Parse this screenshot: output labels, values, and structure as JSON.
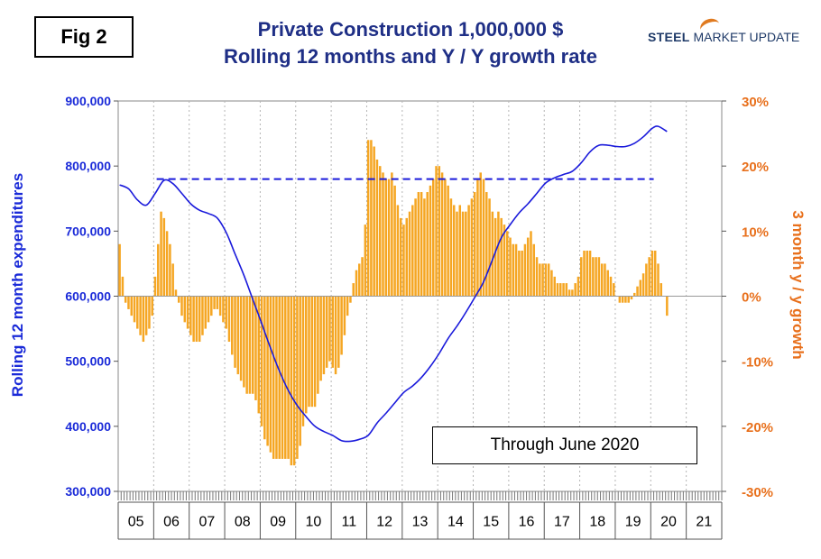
{
  "fig_label": "Fig 2",
  "title_line1": "Private Construction 1,000,000 $",
  "title_line2": "Rolling 12 months and Y / Y growth rate",
  "logo": {
    "steel": "STEEL",
    "rest": " MARKET UPDATE"
  },
  "note": "Through June 2020",
  "colors": {
    "line": "#1a1adb",
    "bars": "#f5a623",
    "left_axis": "#1a2ad8",
    "right_axis": "#e8701c",
    "title": "#1f2f86"
  },
  "chart_data": {
    "type": "bar+line",
    "left_axis": {
      "label": "Rolling 12 month expenditures",
      "ylim": [
        300000,
        900000
      ],
      "ticks": [
        "300,000",
        "400,000",
        "500,000",
        "600,000",
        "700,000",
        "800,000",
        "900,000"
      ]
    },
    "right_axis": {
      "label": "3 month y / y growth",
      "ylim": [
        -30,
        30
      ],
      "ticks": [
        "-30%",
        "-20%",
        "-10%",
        "0%",
        "10%",
        "20%",
        "30%"
      ]
    },
    "x_years": [
      "05",
      "06",
      "07",
      "08",
      "09",
      "10",
      "11",
      "12",
      "13",
      "14",
      "15",
      "16",
      "17",
      "18",
      "19",
      "20",
      "21"
    ],
    "x_range": [
      "2005-01",
      "2021-12"
    ],
    "reference_line": {
      "value": 780000,
      "start": "2006-02",
      "end": "2020-02",
      "style": "dashed"
    },
    "rolling_12m_line": [
      [
        "2005-01",
        771000
      ],
      [
        "2005-04",
        765000
      ],
      [
        "2005-07",
        748000
      ],
      [
        "2005-10",
        740000
      ],
      [
        "2006-01",
        758000
      ],
      [
        "2006-04",
        778000
      ],
      [
        "2006-07",
        773000
      ],
      [
        "2006-10",
        758000
      ],
      [
        "2007-01",
        742000
      ],
      [
        "2007-04",
        732000
      ],
      [
        "2007-07",
        727000
      ],
      [
        "2007-10",
        720000
      ],
      [
        "2008-01",
        698000
      ],
      [
        "2008-04",
        665000
      ],
      [
        "2008-07",
        632000
      ],
      [
        "2008-10",
        595000
      ],
      [
        "2009-01",
        558000
      ],
      [
        "2009-04",
        520000
      ],
      [
        "2009-07",
        485000
      ],
      [
        "2009-10",
        455000
      ],
      [
        "2010-01",
        432000
      ],
      [
        "2010-04",
        415000
      ],
      [
        "2010-07",
        400000
      ],
      [
        "2010-10",
        392000
      ],
      [
        "2011-01",
        386000
      ],
      [
        "2011-04",
        378000
      ],
      [
        "2011-07",
        377000
      ],
      [
        "2011-10",
        380000
      ],
      [
        "2012-01",
        386000
      ],
      [
        "2012-04",
        405000
      ],
      [
        "2012-07",
        420000
      ],
      [
        "2012-10",
        436000
      ],
      [
        "2013-01",
        452000
      ],
      [
        "2013-04",
        462000
      ],
      [
        "2013-07",
        475000
      ],
      [
        "2013-10",
        492000
      ],
      [
        "2014-01",
        512000
      ],
      [
        "2014-04",
        535000
      ],
      [
        "2014-07",
        554000
      ],
      [
        "2014-10",
        575000
      ],
      [
        "2015-01",
        598000
      ],
      [
        "2015-04",
        622000
      ],
      [
        "2015-07",
        656000
      ],
      [
        "2015-10",
        690000
      ],
      [
        "2016-01",
        710000
      ],
      [
        "2016-04",
        728000
      ],
      [
        "2016-07",
        742000
      ],
      [
        "2016-10",
        758000
      ],
      [
        "2017-01",
        774000
      ],
      [
        "2017-04",
        782000
      ],
      [
        "2017-07",
        787000
      ],
      [
        "2017-10",
        792000
      ],
      [
        "2018-01",
        805000
      ],
      [
        "2018-04",
        822000
      ],
      [
        "2018-07",
        832000
      ],
      [
        "2018-10",
        832000
      ],
      [
        "2019-01",
        830000
      ],
      [
        "2019-04",
        830000
      ],
      [
        "2019-07",
        835000
      ],
      [
        "2019-10",
        845000
      ],
      [
        "2020-01",
        858000
      ],
      [
        "2020-03",
        861000
      ],
      [
        "2020-06",
        853000
      ]
    ],
    "growth_bars": [
      [
        "2005-01",
        8
      ],
      [
        "2005-02",
        3
      ],
      [
        "2005-03",
        -1
      ],
      [
        "2005-04",
        -2
      ],
      [
        "2005-05",
        -3
      ],
      [
        "2005-06",
        -4
      ],
      [
        "2005-07",
        -5
      ],
      [
        "2005-08",
        -6
      ],
      [
        "2005-09",
        -7
      ],
      [
        "2005-10",
        -6
      ],
      [
        "2005-11",
        -5
      ],
      [
        "2005-12",
        -3
      ],
      [
        "2006-01",
        3
      ],
      [
        "2006-02",
        8
      ],
      [
        "2006-03",
        13
      ],
      [
        "2006-04",
        12
      ],
      [
        "2006-05",
        10
      ],
      [
        "2006-06",
        8
      ],
      [
        "2006-07",
        5
      ],
      [
        "2006-08",
        1
      ],
      [
        "2006-09",
        -1
      ],
      [
        "2006-10",
        -3
      ],
      [
        "2006-11",
        -4
      ],
      [
        "2006-12",
        -5
      ],
      [
        "2007-01",
        -6
      ],
      [
        "2007-02",
        -7
      ],
      [
        "2007-03",
        -7
      ],
      [
        "2007-04",
        -7
      ],
      [
        "2007-05",
        -6
      ],
      [
        "2007-06",
        -5
      ],
      [
        "2007-07",
        -4
      ],
      [
        "2007-08",
        -3
      ],
      [
        "2007-09",
        -2
      ],
      [
        "2007-10",
        -2
      ],
      [
        "2007-11",
        -3
      ],
      [
        "2007-12",
        -4
      ],
      [
        "2008-01",
        -5
      ],
      [
        "2008-02",
        -7
      ],
      [
        "2008-03",
        -9
      ],
      [
        "2008-04",
        -11
      ],
      [
        "2008-05",
        -12
      ],
      [
        "2008-06",
        -13
      ],
      [
        "2008-07",
        -14
      ],
      [
        "2008-08",
        -15
      ],
      [
        "2008-09",
        -15
      ],
      [
        "2008-10",
        -15
      ],
      [
        "2008-11",
        -16
      ],
      [
        "2008-12",
        -18
      ],
      [
        "2009-01",
        -20
      ],
      [
        "2009-02",
        -22
      ],
      [
        "2009-03",
        -23
      ],
      [
        "2009-04",
        -24
      ],
      [
        "2009-05",
        -25
      ],
      [
        "2009-06",
        -25
      ],
      [
        "2009-07",
        -25
      ],
      [
        "2009-08",
        -25
      ],
      [
        "2009-09",
        -25
      ],
      [
        "2009-10",
        -25
      ],
      [
        "2009-11",
        -26
      ],
      [
        "2009-12",
        -26
      ],
      [
        "2010-01",
        -25
      ],
      [
        "2010-02",
        -23
      ],
      [
        "2010-03",
        -20
      ],
      [
        "2010-04",
        -18
      ],
      [
        "2010-05",
        -17
      ],
      [
        "2010-06",
        -17
      ],
      [
        "2010-07",
        -17
      ],
      [
        "2010-08",
        -15
      ],
      [
        "2010-09",
        -13
      ],
      [
        "2010-10",
        -12
      ],
      [
        "2010-11",
        -11
      ],
      [
        "2010-12",
        -10
      ],
      [
        "2011-01",
        -11
      ],
      [
        "2011-02",
        -12
      ],
      [
        "2011-03",
        -11
      ],
      [
        "2011-04",
        -9
      ],
      [
        "2011-05",
        -6
      ],
      [
        "2011-06",
        -3
      ],
      [
        "2011-07",
        -1
      ],
      [
        "2011-08",
        2
      ],
      [
        "2011-09",
        4
      ],
      [
        "2011-10",
        5
      ],
      [
        "2011-11",
        6
      ],
      [
        "2011-12",
        11
      ],
      [
        "2012-01",
        24
      ],
      [
        "2012-02",
        24
      ],
      [
        "2012-03",
        23
      ],
      [
        "2012-04",
        21
      ],
      [
        "2012-05",
        20
      ],
      [
        "2012-06",
        19
      ],
      [
        "2012-07",
        18
      ],
      [
        "2012-08",
        18
      ],
      [
        "2012-09",
        19
      ],
      [
        "2012-10",
        17
      ],
      [
        "2012-11",
        14
      ],
      [
        "2012-12",
        12
      ],
      [
        "2013-01",
        11
      ],
      [
        "2013-02",
        12
      ],
      [
        "2013-03",
        13
      ],
      [
        "2013-04",
        14
      ],
      [
        "2013-05",
        15
      ],
      [
        "2013-06",
        16
      ],
      [
        "2013-07",
        16
      ],
      [
        "2013-08",
        15
      ],
      [
        "2013-09",
        16
      ],
      [
        "2013-10",
        17
      ],
      [
        "2013-11",
        18
      ],
      [
        "2013-12",
        20
      ],
      [
        "2014-01",
        20
      ],
      [
        "2014-02",
        19
      ],
      [
        "2014-03",
        18
      ],
      [
        "2014-04",
        17
      ],
      [
        "2014-05",
        15
      ],
      [
        "2014-06",
        14
      ],
      [
        "2014-07",
        13
      ],
      [
        "2014-08",
        14
      ],
      [
        "2014-09",
        13
      ],
      [
        "2014-10",
        13
      ],
      [
        "2014-11",
        14
      ],
      [
        "2014-12",
        15
      ],
      [
        "2015-01",
        16
      ],
      [
        "2015-02",
        18
      ],
      [
        "2015-03",
        19
      ],
      [
        "2015-04",
        18
      ],
      [
        "2015-05",
        16
      ],
      [
        "2015-06",
        15
      ],
      [
        "2015-07",
        13
      ],
      [
        "2015-08",
        12
      ],
      [
        "2015-09",
        13
      ],
      [
        "2015-10",
        12
      ],
      [
        "2015-11",
        11
      ],
      [
        "2015-12",
        10
      ],
      [
        "2016-01",
        9
      ],
      [
        "2016-02",
        8
      ],
      [
        "2016-03",
        8
      ],
      [
        "2016-04",
        7
      ],
      [
        "2016-05",
        7
      ],
      [
        "2016-06",
        8
      ],
      [
        "2016-07",
        9
      ],
      [
        "2016-08",
        10
      ],
      [
        "2016-09",
        8
      ],
      [
        "2016-10",
        6
      ],
      [
        "2016-11",
        5
      ],
      [
        "2016-12",
        5
      ],
      [
        "2017-01",
        5
      ],
      [
        "2017-02",
        5
      ],
      [
        "2017-03",
        4
      ],
      [
        "2017-04",
        3
      ],
      [
        "2017-05",
        2
      ],
      [
        "2017-06",
        2
      ],
      [
        "2017-07",
        2
      ],
      [
        "2017-08",
        2
      ],
      [
        "2017-09",
        1
      ],
      [
        "2017-10",
        1
      ],
      [
        "2017-11",
        2
      ],
      [
        "2017-12",
        3
      ],
      [
        "2018-01",
        6
      ],
      [
        "2018-02",
        7
      ],
      [
        "2018-03",
        7
      ],
      [
        "2018-04",
        7
      ],
      [
        "2018-05",
        6
      ],
      [
        "2018-06",
        6
      ],
      [
        "2018-07",
        6
      ],
      [
        "2018-08",
        5
      ],
      [
        "2018-09",
        5
      ],
      [
        "2018-10",
        4
      ],
      [
        "2018-11",
        3
      ],
      [
        "2018-12",
        2
      ],
      [
        "2019-01",
        0
      ],
      [
        "2019-02",
        -1
      ],
      [
        "2019-03",
        -1
      ],
      [
        "2019-04",
        -1
      ],
      [
        "2019-05",
        -1
      ],
      [
        "2019-06",
        -0.5
      ],
      [
        "2019-07",
        0.5
      ],
      [
        "2019-08",
        1.5
      ],
      [
        "2019-09",
        2.5
      ],
      [
        "2019-10",
        3.5
      ],
      [
        "2019-11",
        5
      ],
      [
        "2019-12",
        6
      ],
      [
        "2020-01",
        7
      ],
      [
        "2020-02",
        7
      ],
      [
        "2020-03",
        5
      ],
      [
        "2020-04",
        2
      ],
      [
        "2020-05",
        0
      ],
      [
        "2020-06",
        -3
      ]
    ]
  }
}
